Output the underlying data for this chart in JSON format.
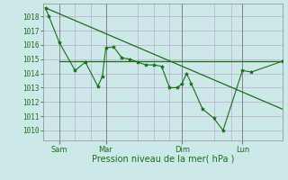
{
  "background_color": "#cce8e8",
  "grid_color": "#bbaacc",
  "line_color": "#1a6e1a",
  "marker_color": "#1a6e1a",
  "ylabel_ticks": [
    1010,
    1011,
    1012,
    1013,
    1014,
    1015,
    1016,
    1017,
    1018
  ],
  "ylim": [
    1009.3,
    1018.9
  ],
  "xlabel": "Pression niveau de la mer( hPa )",
  "day_labels": [
    "Sam",
    "Mar",
    "Dim",
    "Lun"
  ],
  "day_positions": [
    14,
    55,
    122,
    175
  ],
  "xlim": [
    0,
    210
  ],
  "main_line_x": [
    2,
    5,
    14,
    28,
    37,
    48,
    52,
    55,
    62,
    69,
    76,
    83,
    90,
    97,
    104,
    111,
    118,
    122,
    126,
    130,
    140,
    150,
    158,
    175,
    183,
    210
  ],
  "main_line_y": [
    1018.6,
    1018.0,
    1016.2,
    1014.2,
    1014.8,
    1013.1,
    1013.8,
    1015.8,
    1015.85,
    1015.1,
    1015.0,
    1014.8,
    1014.6,
    1014.6,
    1014.5,
    1013.0,
    1013.0,
    1013.3,
    1014.0,
    1013.3,
    1011.5,
    1010.85,
    1010.0,
    1014.2,
    1014.1,
    1014.85
  ],
  "trend_line_x": [
    2,
    210
  ],
  "trend_line_y": [
    1018.6,
    1011.5
  ],
  "flat_line_x": [
    14,
    210
  ],
  "flat_line_y": [
    1014.88,
    1014.88
  ],
  "vline_positions": [
    14,
    55,
    122,
    175
  ],
  "grid_vlines": [
    0,
    28,
    42,
    55,
    83,
    97,
    111,
    122,
    150,
    165,
    175,
    210
  ],
  "figsize": [
    3.2,
    2.0
  ],
  "dpi": 100
}
